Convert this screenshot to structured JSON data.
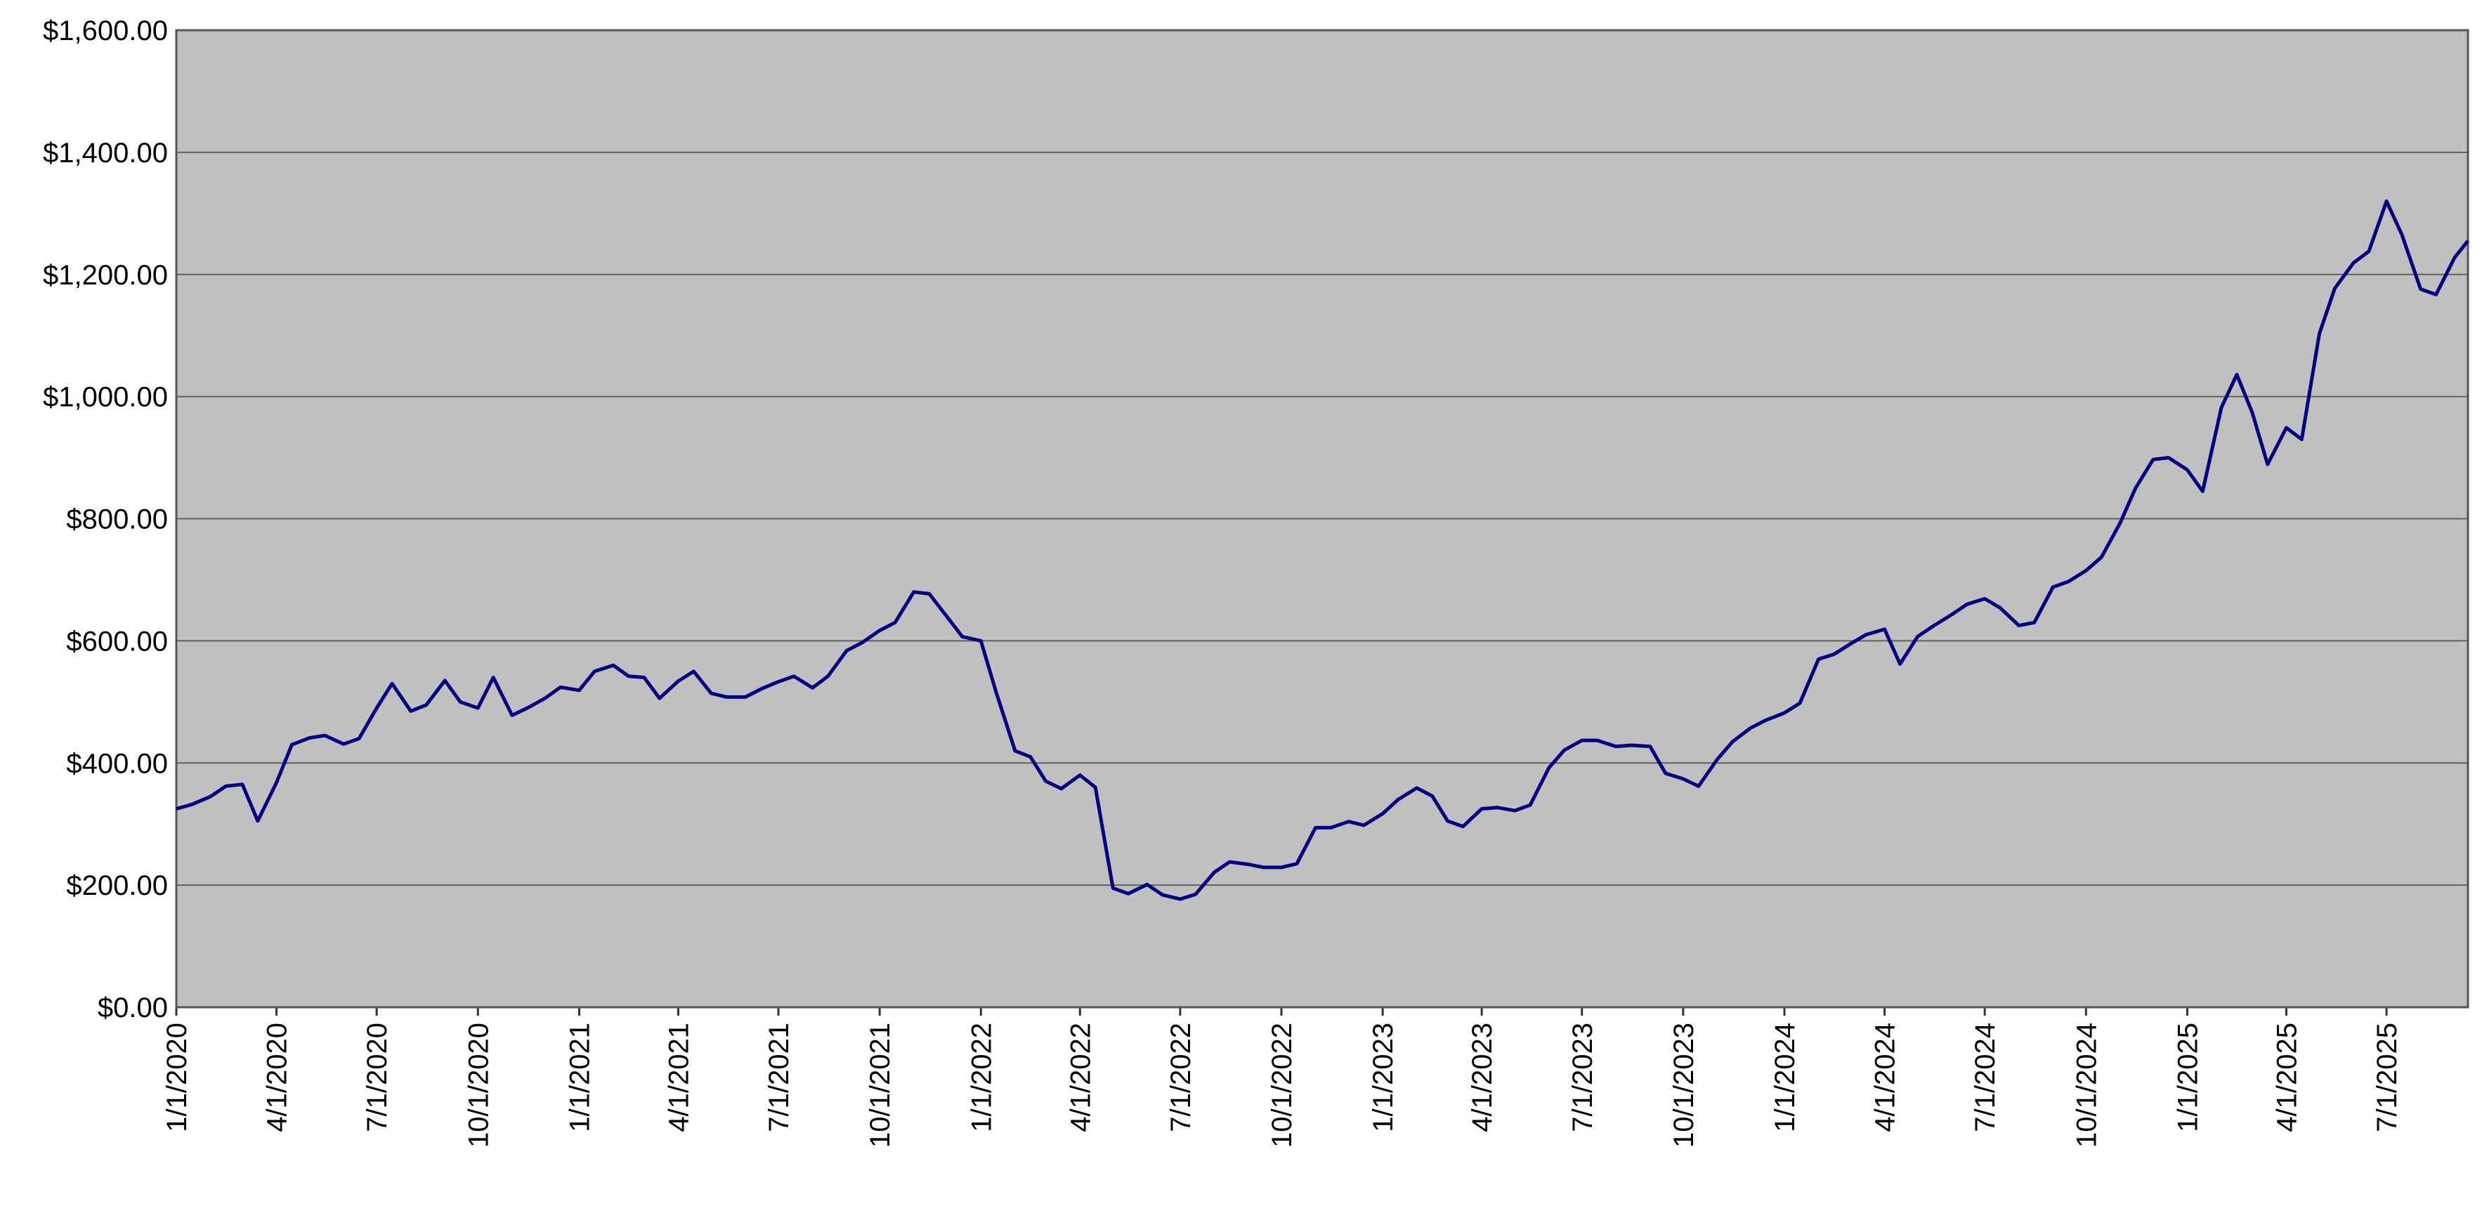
{
  "chart_data": {
    "type": "line",
    "x": [
      "1/1/2020",
      "1/15/2020",
      "2/1/2020",
      "2/15/2020",
      "3/1/2020",
      "3/15/2020",
      "4/1/2020",
      "4/15/2020",
      "5/1/2020",
      "5/15/2020",
      "6/1/2020",
      "6/15/2020",
      "7/1/2020",
      "7/15/2020",
      "8/1/2020",
      "8/15/2020",
      "9/1/2020",
      "9/15/2020",
      "10/1/2020",
      "10/15/2020",
      "11/1/2020",
      "11/15/2020",
      "12/1/2020",
      "12/15/2020",
      "1/1/2021",
      "1/15/2021",
      "2/1/2021",
      "2/15/2021",
      "3/1/2021",
      "3/15/2021",
      "4/1/2021",
      "4/15/2021",
      "5/1/2021",
      "5/15/2021",
      "6/1/2021",
      "6/15/2021",
      "7/1/2021",
      "7/15/2021",
      "8/1/2021",
      "8/15/2021",
      "9/1/2021",
      "9/15/2021",
      "10/1/2021",
      "10/15/2021",
      "11/1/2021",
      "11/15/2021",
      "12/1/2021",
      "12/15/2021",
      "1/1/2022",
      "1/15/2022",
      "2/1/2022",
      "2/15/2022",
      "3/1/2022",
      "3/15/2022",
      "4/1/2022",
      "4/15/2022",
      "5/1/2022",
      "5/15/2022",
      "6/1/2022",
      "6/15/2022",
      "7/1/2022",
      "7/15/2022",
      "8/1/2022",
      "8/15/2022",
      "9/1/2022",
      "9/15/2022",
      "10/1/2022",
      "10/15/2022",
      "11/1/2022",
      "11/15/2022",
      "12/1/2022",
      "12/15/2022",
      "1/1/2023",
      "1/15/2023",
      "2/1/2023",
      "2/15/2023",
      "3/1/2023",
      "3/15/2023",
      "4/1/2023",
      "4/15/2023",
      "5/1/2023",
      "5/15/2023",
      "6/1/2023",
      "6/15/2023",
      "7/1/2023",
      "7/15/2023",
      "8/1/2023",
      "8/15/2023",
      "9/1/2023",
      "9/15/2023",
      "10/1/2023",
      "10/15/2023",
      "11/1/2023",
      "11/15/2023",
      "12/1/2023",
      "12/15/2023",
      "1/1/2024",
      "1/15/2024",
      "2/1/2024",
      "2/15/2024",
      "3/1/2024",
      "3/15/2024",
      "4/1/2024",
      "4/15/2024",
      "5/1/2024",
      "5/15/2024",
      "6/1/2024",
      "6/15/2024",
      "7/1/2024",
      "7/15/2024",
      "8/1/2024",
      "8/15/2024",
      "9/1/2024",
      "9/15/2024",
      "10/1/2024",
      "10/15/2024",
      "11/1/2024",
      "11/15/2024",
      "12/1/2024",
      "12/15/2024",
      "1/1/2025",
      "1/15/2025",
      "2/1/2025",
      "2/15/2025",
      "3/1/2025",
      "3/15/2025",
      "4/1/2025",
      "4/15/2025",
      "5/1/2025",
      "5/15/2025",
      "6/1/2025",
      "6/15/2025",
      "7/1/2025",
      "7/15/2025",
      "8/1/2025",
      "8/15/2025",
      "9/1/2025",
      "9/13/2025"
    ],
    "values": [
      325,
      332,
      345,
      362,
      365,
      305,
      368,
      430,
      441,
      445,
      431,
      440,
      490,
      530,
      485,
      495,
      535,
      500,
      490,
      540,
      478,
      490,
      506,
      524,
      519,
      550,
      560,
      542,
      540,
      506,
      534,
      550,
      514,
      508,
      508,
      521,
      533,
      542,
      523,
      542,
      584,
      597,
      617,
      630,
      680,
      677,
      640,
      607,
      600,
      515,
      420,
      410,
      370,
      358,
      380,
      360,
      195,
      186,
      201,
      184,
      177,
      185,
      221,
      238,
      234,
      229,
      229,
      235,
      294,
      294,
      304,
      298,
      317,
      340,
      359,
      346,
      305,
      296,
      325,
      327,
      322,
      331,
      392,
      421,
      437,
      437,
      427,
      429,
      427,
      383,
      374,
      362,
      406,
      435,
      457,
      470,
      482,
      498,
      570,
      578,
      595,
      610,
      619,
      562,
      607,
      624,
      643,
      660,
      669,
      654,
      625,
      630,
      688,
      697,
      715,
      737,
      793,
      850,
      897,
      900,
      880,
      845,
      982,
      1036,
      974,
      889,
      949,
      930,
      1103,
      1177,
      1219,
      1238,
      1320,
      1265,
      1176,
      1167,
      1228,
      1255
    ],
    "color": "#000080",
    "xlim": [
      "1/1/2020",
      "9/13/2025"
    ],
    "xticks": [
      "1/1/2020",
      "4/1/2020",
      "7/1/2020",
      "10/1/2020",
      "1/1/2021",
      "4/1/2021",
      "7/1/2021",
      "10/1/2021",
      "1/1/2022",
      "4/1/2022",
      "7/1/2022",
      "10/1/2022",
      "1/1/2023",
      "4/1/2023",
      "7/1/2023",
      "10/1/2023",
      "1/1/2024",
      "4/1/2024",
      "7/1/2024",
      "10/1/2024",
      "1/1/2025",
      "4/1/2025",
      "7/1/2025"
    ],
    "ylim": [
      0,
      1600
    ],
    "yticks": [
      {
        "value": 0,
        "label": "$0.00"
      },
      {
        "value": 200,
        "label": "$200.00"
      },
      {
        "value": 400,
        "label": "$400.00"
      },
      {
        "value": 600,
        "label": "$600.00"
      },
      {
        "value": 800,
        "label": "$800.00"
      },
      {
        "value": 1000,
        "label": "$1,000.00"
      },
      {
        "value": 1200,
        "label": "$1,200.00"
      },
      {
        "value": 1400,
        "label": "$1,400.00"
      },
      {
        "value": 1600,
        "label": "$1,600.00"
      }
    ],
    "grid": true
  }
}
